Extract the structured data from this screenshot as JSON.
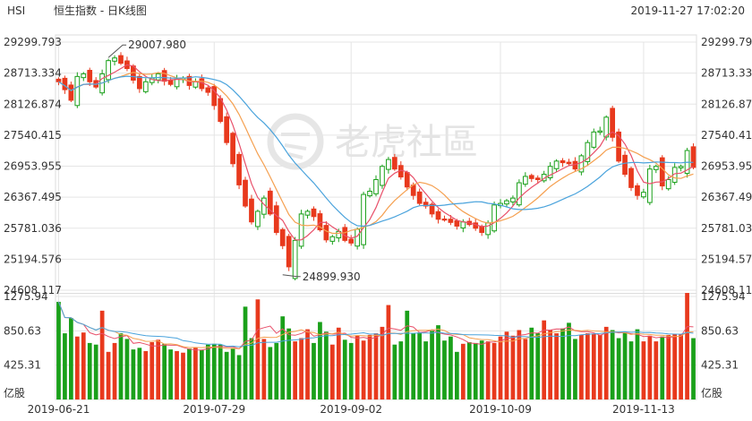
{
  "header": {
    "symbol": "HSI",
    "title": "恒生指数 - 日K线图",
    "timestamp": "2019-11-27 17:02:20"
  },
  "watermark": {
    "text": "老虎社區",
    "icon": "tiger-logo-icon"
  },
  "colors": {
    "up": "#e8391d",
    "down": "#1aa01a",
    "ma5": "#e8506a",
    "ma10": "#f5a050",
    "ma20": "#4aa3dc",
    "grid": "#e5e5e5"
  },
  "chart_data": [
    {
      "type": "candlestick",
      "title": "恒生指数 - 日K线图",
      "y_ticks": [
        "29299.793",
        "28713.334",
        "28126.874",
        "27540.415",
        "26953.955",
        "26367.495",
        "25781.036",
        "25194.576",
        "24608.117"
      ],
      "ylim": [
        24608.117,
        29299.793
      ],
      "x_ticks": [
        "2019-06-21",
        "2019-07-29",
        "2019-09-02",
        "2019-10-09",
        "2019-11-13"
      ],
      "x_tick_index": [
        0,
        25,
        47,
        71,
        94
      ],
      "annotations": [
        {
          "label": "29007.980",
          "index": 8,
          "value": 29007.98
        },
        {
          "label": "24899.930",
          "index": 36,
          "value": 24899.93
        }
      ],
      "close": [
        28550,
        28400,
        28200,
        28650,
        28700,
        28550,
        28450,
        28700,
        28950,
        29000,
        28900,
        28800,
        28580,
        28420,
        28550,
        28620,
        28700,
        28560,
        28500,
        28600,
        28620,
        28480,
        28550,
        28420,
        28350,
        28100,
        27800,
        27400,
        27000,
        26600,
        26200,
        25900,
        26100,
        26350,
        26050,
        25700,
        25450,
        25050,
        25550,
        26050,
        26100,
        26000,
        25750,
        25560,
        25620,
        25720,
        25550,
        25500,
        25760,
        26420,
        26480,
        26700,
        26950,
        27080,
        26900,
        26750,
        26560,
        26400,
        26250,
        26200,
        26050,
        25950,
        25940,
        25890,
        25820,
        25900,
        25850,
        25780,
        25700,
        25880,
        26220,
        26250,
        26300,
        26350,
        26640,
        26760,
        26720,
        26700,
        26800,
        26950,
        27050,
        27020,
        27000,
        26900,
        27150,
        27400,
        27600,
        27620,
        27880,
        27500,
        27050,
        26800,
        26550,
        26400,
        26460,
        26900,
        26950,
        26580,
        26700,
        26930,
        26950,
        27250,
        26930
      ],
      "series": [
        {
          "name": "MA5"
        },
        {
          "name": "MA10"
        },
        {
          "name": "MA20"
        }
      ]
    },
    {
      "type": "bar",
      "title": "",
      "ylabel": "亿股",
      "y_ticks": [
        "1275.94",
        "850.63",
        "425.31"
      ],
      "ylim": [
        0,
        1275.94
      ],
      "volume": [
        1210,
        820,
        1010,
        780,
        830,
        700,
        680,
        1100,
        590,
        700,
        820,
        750,
        620,
        640,
        600,
        710,
        740,
        690,
        620,
        600,
        580,
        630,
        640,
        610,
        680,
        690,
        680,
        590,
        630,
        550,
        1150,
        760,
        1240,
        750,
        650,
        700,
        1030,
        880,
        720,
        760,
        870,
        700,
        960,
        840,
        680,
        890,
        740,
        700,
        790,
        730,
        800,
        820,
        900,
        1170,
        680,
        720,
        1100,
        820,
        830,
        720,
        850,
        920,
        730,
        780,
        590,
        690,
        710,
        700,
        730,
        720,
        700,
        780,
        840,
        790,
        860,
        750,
        890,
        820,
        980,
        860,
        820,
        880,
        950,
        750,
        800,
        820,
        810,
        800,
        900,
        860,
        760,
        830,
        720,
        870,
        720,
        790,
        720,
        780,
        800,
        810,
        810,
        1320,
        760
      ]
    }
  ]
}
